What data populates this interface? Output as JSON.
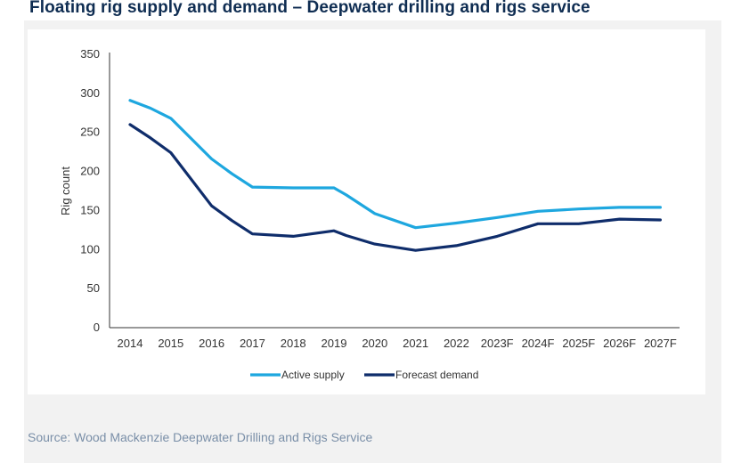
{
  "title": "Floating rig supply and demand – Deepwater drilling and rigs service",
  "source": "Source: Wood Mackenzie Deepwater Drilling and Rigs Service",
  "colors": {
    "active_supply": "#1ea7df",
    "forecast_demand": "#0f2d6b",
    "axis": "#333333",
    "title": "#0f2d52",
    "source": "#7a8fa8"
  },
  "chart_data": {
    "type": "line",
    "title": "Floating rig supply and demand – Deepwater drilling and rigs service",
    "xlabel": "",
    "ylabel": "Rig count",
    "ylim": [
      0,
      350
    ],
    "yticks": [
      0,
      50,
      100,
      150,
      200,
      250,
      300,
      350
    ],
    "categories": [
      "2014",
      "2015",
      "2016",
      "2017",
      "2018",
      "2019",
      "2020",
      "2021",
      "2022",
      "2023F",
      "2024F",
      "2025F",
      "2026F",
      "2027F"
    ],
    "x": [
      2014,
      2014.5,
      2015,
      2016,
      2016.5,
      2017,
      2018,
      2019,
      2019.3,
      2020,
      2021,
      2022,
      2023,
      2024,
      2025,
      2026,
      2027
    ],
    "series": [
      {
        "name": "Active supply",
        "color": "#1ea7df",
        "values": [
          291,
          281,
          268,
          216,
          197,
          180,
          179,
          179,
          170,
          146,
          128,
          134,
          141,
          149,
          152,
          154,
          154
        ]
      },
      {
        "name": "Forecast demand",
        "color": "#0f2d6b",
        "values": [
          260,
          243,
          224,
          156,
          137,
          120,
          117,
          124,
          118,
          107,
          99,
          105,
          117,
          133,
          133,
          139,
          138
        ]
      }
    ],
    "grid": false,
    "legend": "bottom-center"
  }
}
